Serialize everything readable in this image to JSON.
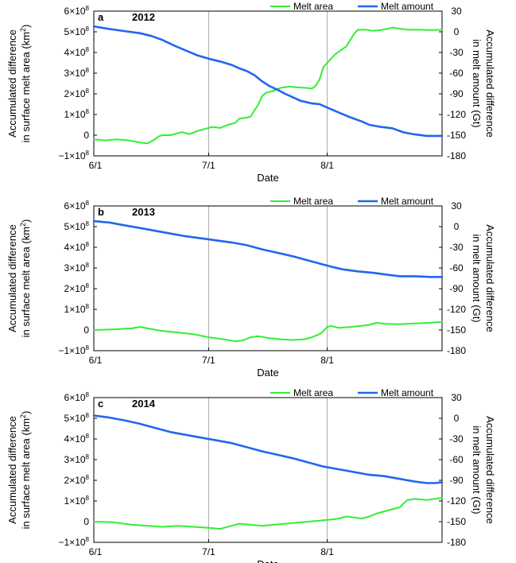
{
  "chart_data": [
    {
      "type": "line",
      "panel_label": "a",
      "title": "2012",
      "xlabel": "Date",
      "ylabel_left_line1": "Accumulated difference",
      "ylabel_left_line2": "in surface melt area (km",
      "ylabel_left_sup": "2",
      "ylabel_left_close": ")",
      "ylabel_right_line1": "Accumulated difference",
      "ylabel_right_line2": "in melt amount (Gt)",
      "x_ticks": [
        "6/1",
        "7/1",
        "8/1"
      ],
      "x_tick_days": [
        0,
        30,
        61
      ],
      "xlim": [
        0,
        91
      ],
      "ylim_left": [
        -100000000,
        600000000
      ],
      "ylim_right": [
        -180,
        30
      ],
      "left_ticks": [
        {
          "value": 600000000,
          "base": "6×10",
          "exp": "8"
        },
        {
          "value": 500000000,
          "base": "5×10",
          "exp": "8"
        },
        {
          "value": 400000000,
          "base": "4×10",
          "exp": "8"
        },
        {
          "value": 300000000,
          "base": "3×10",
          "exp": "8"
        },
        {
          "value": 200000000,
          "base": "2×10",
          "exp": "8"
        },
        {
          "value": 100000000,
          "base": "1×10",
          "exp": "8"
        },
        {
          "value": 0,
          "base": "0",
          "exp": ""
        },
        {
          "value": -100000000,
          "base": "−1×10",
          "exp": "8"
        }
      ],
      "right_ticks": [
        "30",
        "0",
        "-30",
        "-60",
        "-90",
        "-120",
        "-150",
        "-180"
      ],
      "right_tick_values": [
        30,
        0,
        -30,
        -60,
        -90,
        -120,
        -150,
        -180
      ],
      "series": [
        {
          "name": "Melt area",
          "axis": "left",
          "color": "#33ee33",
          "points": [
            [
              0,
              -20000000
            ],
            [
              3,
              -25000000
            ],
            [
              6,
              -20000000
            ],
            [
              9,
              -25000000
            ],
            [
              12,
              -35000000
            ],
            [
              14,
              -40000000
            ],
            [
              16,
              -20000000
            ],
            [
              17,
              -5000000
            ],
            [
              18,
              0
            ],
            [
              20,
              0
            ],
            [
              22,
              10000000
            ],
            [
              23,
              15000000
            ],
            [
              25,
              5000000
            ],
            [
              27,
              20000000
            ],
            [
              29,
              30000000
            ],
            [
              31,
              40000000
            ],
            [
              33,
              35000000
            ],
            [
              35,
              50000000
            ],
            [
              37,
              60000000
            ],
            [
              38,
              80000000
            ],
            [
              40,
              85000000
            ],
            [
              41,
              90000000
            ],
            [
              43,
              150000000
            ],
            [
              44,
              190000000
            ],
            [
              45,
              205000000
            ],
            [
              47,
              215000000
            ],
            [
              49,
              230000000
            ],
            [
              51,
              235000000
            ],
            [
              53,
              232000000
            ],
            [
              56,
              228000000
            ],
            [
              57,
              225000000
            ],
            [
              58,
              240000000
            ],
            [
              59,
              270000000
            ],
            [
              60,
              330000000
            ],
            [
              63,
              390000000
            ],
            [
              66,
              430000000
            ],
            [
              68,
              490000000
            ],
            [
              69,
              510000000
            ],
            [
              71,
              510000000
            ],
            [
              73,
              505000000
            ],
            [
              75,
              508000000
            ],
            [
              78,
              520000000
            ],
            [
              80,
              515000000
            ],
            [
              82,
              510000000
            ],
            [
              85,
              510000000
            ],
            [
              88,
              508000000
            ],
            [
              91,
              510000000
            ]
          ]
        },
        {
          "name": "Melt amount",
          "axis": "right",
          "color": "#2266ee",
          "points": [
            [
              0,
              8
            ],
            [
              3,
              5
            ],
            [
              8,
              1
            ],
            [
              12,
              -2
            ],
            [
              15,
              -6
            ],
            [
              18,
              -12
            ],
            [
              21,
              -20
            ],
            [
              24,
              -27
            ],
            [
              27,
              -34
            ],
            [
              30,
              -39
            ],
            [
              33,
              -43
            ],
            [
              36,
              -48
            ],
            [
              38,
              -53
            ],
            [
              40,
              -57
            ],
            [
              42,
              -63
            ],
            [
              44,
              -72
            ],
            [
              46,
              -79
            ],
            [
              48,
              -84
            ],
            [
              50,
              -90
            ],
            [
              52,
              -95
            ],
            [
              54,
              -100
            ],
            [
              57,
              -104
            ],
            [
              59,
              -105
            ],
            [
              61,
              -110
            ],
            [
              64,
              -117
            ],
            [
              67,
              -124
            ],
            [
              70,
              -130
            ],
            [
              72,
              -135
            ],
            [
              75,
              -138
            ],
            [
              78,
              -140
            ],
            [
              81,
              -146
            ],
            [
              84,
              -149
            ],
            [
              87,
              -151
            ],
            [
              91,
              -151
            ]
          ]
        }
      ]
    },
    {
      "type": "line",
      "panel_label": "b",
      "title": "2013",
      "xlabel": "Date",
      "ylabel_left_line1": "Accumulated difference",
      "ylabel_left_line2": "in surface melt area (km",
      "ylabel_left_sup": "2",
      "ylabel_left_close": ")",
      "ylabel_right_line1": "Accumulated difference",
      "ylabel_right_line2": "in melt amount (Gt)",
      "x_ticks": [
        "6/1",
        "7/1",
        "8/1"
      ],
      "x_tick_days": [
        0,
        30,
        61
      ],
      "xlim": [
        0,
        91
      ],
      "ylim_left": [
        -100000000,
        600000000
      ],
      "ylim_right": [
        -180,
        30
      ],
      "left_ticks": [
        {
          "value": 600000000,
          "base": "6×10",
          "exp": "8"
        },
        {
          "value": 500000000,
          "base": "5×10",
          "exp": "8"
        },
        {
          "value": 400000000,
          "base": "4×10",
          "exp": "8"
        },
        {
          "value": 300000000,
          "base": "3×10",
          "exp": "8"
        },
        {
          "value": 200000000,
          "base": "2×10",
          "exp": "8"
        },
        {
          "value": 100000000,
          "base": "1×10",
          "exp": "8"
        },
        {
          "value": 0,
          "base": "0",
          "exp": ""
        },
        {
          "value": -100000000,
          "base": "−1×10",
          "exp": "8"
        }
      ],
      "right_ticks": [
        "30",
        "0",
        "-30",
        "-60",
        "-90",
        "-120",
        "-150",
        "-180"
      ],
      "right_tick_values": [
        30,
        0,
        -30,
        -60,
        -90,
        -120,
        -150,
        -180
      ],
      "series": [
        {
          "name": "Melt area",
          "axis": "left",
          "color": "#33ee33",
          "points": [
            [
              0,
              0
            ],
            [
              5,
              3000000
            ],
            [
              10,
              8000000
            ],
            [
              12,
              15000000
            ],
            [
              14,
              8000000
            ],
            [
              18,
              -5000000
            ],
            [
              22,
              -12000000
            ],
            [
              26,
              -20000000
            ],
            [
              30,
              -35000000
            ],
            [
              34,
              -45000000
            ],
            [
              37,
              -55000000
            ],
            [
              39,
              -50000000
            ],
            [
              41,
              -35000000
            ],
            [
              43,
              -30000000
            ],
            [
              46,
              -40000000
            ],
            [
              49,
              -45000000
            ],
            [
              52,
              -48000000
            ],
            [
              55,
              -45000000
            ],
            [
              57,
              -35000000
            ],
            [
              59,
              -20000000
            ],
            [
              60,
              -5000000
            ],
            [
              61,
              15000000
            ],
            [
              62,
              20000000
            ],
            [
              64,
              10000000
            ],
            [
              67,
              15000000
            ],
            [
              70,
              20000000
            ],
            [
              72,
              25000000
            ],
            [
              74,
              35000000
            ],
            [
              76,
              30000000
            ],
            [
              80,
              28000000
            ],
            [
              84,
              32000000
            ],
            [
              88,
              35000000
            ],
            [
              91,
              40000000
            ]
          ]
        },
        {
          "name": "Melt amount",
          "axis": "right",
          "color": "#2266ee",
          "points": [
            [
              0,
              8
            ],
            [
              4,
              6
            ],
            [
              8,
              2
            ],
            [
              12,
              -2
            ],
            [
              16,
              -6
            ],
            [
              20,
              -10
            ],
            [
              24,
              -14
            ],
            [
              28,
              -17
            ],
            [
              32,
              -20
            ],
            [
              36,
              -23
            ],
            [
              40,
              -27
            ],
            [
              44,
              -33
            ],
            [
              48,
              -38
            ],
            [
              52,
              -43
            ],
            [
              56,
              -49
            ],
            [
              60,
              -55
            ],
            [
              62,
              -58
            ],
            [
              65,
              -62
            ],
            [
              69,
              -65
            ],
            [
              73,
              -67
            ],
            [
              77,
              -70
            ],
            [
              80,
              -72
            ],
            [
              84,
              -72
            ],
            [
              88,
              -73
            ],
            [
              91,
              -73
            ]
          ]
        }
      ]
    },
    {
      "type": "line",
      "panel_label": "c",
      "title": "2014",
      "xlabel": "Date",
      "ylabel_left_line1": "Accumulated difference",
      "ylabel_left_line2": "in surface melt area (km",
      "ylabel_left_sup": "2",
      "ylabel_left_close": ")",
      "ylabel_right_line1": "Accumulated difference",
      "ylabel_right_line2": "in melt amount (Gt)",
      "x_ticks": [
        "6/1",
        "7/1",
        "8/1"
      ],
      "x_tick_days": [
        0,
        30,
        61
      ],
      "xlim": [
        0,
        91
      ],
      "ylim_left": [
        -100000000,
        600000000
      ],
      "ylim_right": [
        -180,
        30
      ],
      "left_ticks": [
        {
          "value": 600000000,
          "base": "6×10",
          "exp": "8"
        },
        {
          "value": 500000000,
          "base": "5×10",
          "exp": "8"
        },
        {
          "value": 400000000,
          "base": "4×10",
          "exp": "8"
        },
        {
          "value": 300000000,
          "base": "3×10",
          "exp": "8"
        },
        {
          "value": 200000000,
          "base": "2×10",
          "exp": "8"
        },
        {
          "value": 100000000,
          "base": "1×10",
          "exp": "8"
        },
        {
          "value": 0,
          "base": "0",
          "exp": ""
        },
        {
          "value": -100000000,
          "base": "−1×10",
          "exp": "8"
        }
      ],
      "right_ticks": [
        "30",
        "0",
        "-30",
        "-60",
        "-90",
        "-120",
        "-150",
        "-180"
      ],
      "right_tick_values": [
        30,
        0,
        -30,
        -60,
        -90,
        -120,
        -150,
        -180
      ],
      "series": [
        {
          "name": "Melt area",
          "axis": "left",
          "color": "#33ee33",
          "points": [
            [
              0,
              0
            ],
            [
              5,
              -3000000
            ],
            [
              10,
              -15000000
            ],
            [
              14,
              -20000000
            ],
            [
              18,
              -25000000
            ],
            [
              22,
              -20000000
            ],
            [
              26,
              -25000000
            ],
            [
              30,
              -30000000
            ],
            [
              33,
              -35000000
            ],
            [
              36,
              -20000000
            ],
            [
              38,
              -10000000
            ],
            [
              41,
              -15000000
            ],
            [
              44,
              -20000000
            ],
            [
              47,
              -15000000
            ],
            [
              50,
              -10000000
            ],
            [
              53,
              -5000000
            ],
            [
              56,
              0
            ],
            [
              59,
              5000000
            ],
            [
              62,
              10000000
            ],
            [
              64,
              15000000
            ],
            [
              66,
              25000000
            ],
            [
              68,
              20000000
            ],
            [
              70,
              15000000
            ],
            [
              72,
              25000000
            ],
            [
              74,
              40000000
            ],
            [
              76,
              50000000
            ],
            [
              78,
              60000000
            ],
            [
              80,
              70000000
            ],
            [
              81,
              90000000
            ],
            [
              82,
              105000000
            ],
            [
              84,
              110000000
            ],
            [
              87,
              105000000
            ],
            [
              89,
              110000000
            ],
            [
              91,
              115000000
            ]
          ]
        },
        {
          "name": "Melt amount",
          "axis": "right",
          "color": "#2266ee",
          "points": [
            [
              0,
              4
            ],
            [
              4,
              1
            ],
            [
              8,
              -3
            ],
            [
              12,
              -8
            ],
            [
              16,
              -14
            ],
            [
              20,
              -20
            ],
            [
              24,
              -24
            ],
            [
              28,
              -28
            ],
            [
              32,
              -32
            ],
            [
              36,
              -36
            ],
            [
              40,
              -42
            ],
            [
              44,
              -48
            ],
            [
              48,
              -53
            ],
            [
              52,
              -58
            ],
            [
              56,
              -64
            ],
            [
              60,
              -70
            ],
            [
              64,
              -74
            ],
            [
              68,
              -78
            ],
            [
              72,
              -82
            ],
            [
              76,
              -84
            ],
            [
              80,
              -88
            ],
            [
              84,
              -92
            ],
            [
              87,
              -94
            ],
            [
              89,
              -94
            ],
            [
              91,
              -93
            ]
          ]
        }
      ]
    }
  ]
}
